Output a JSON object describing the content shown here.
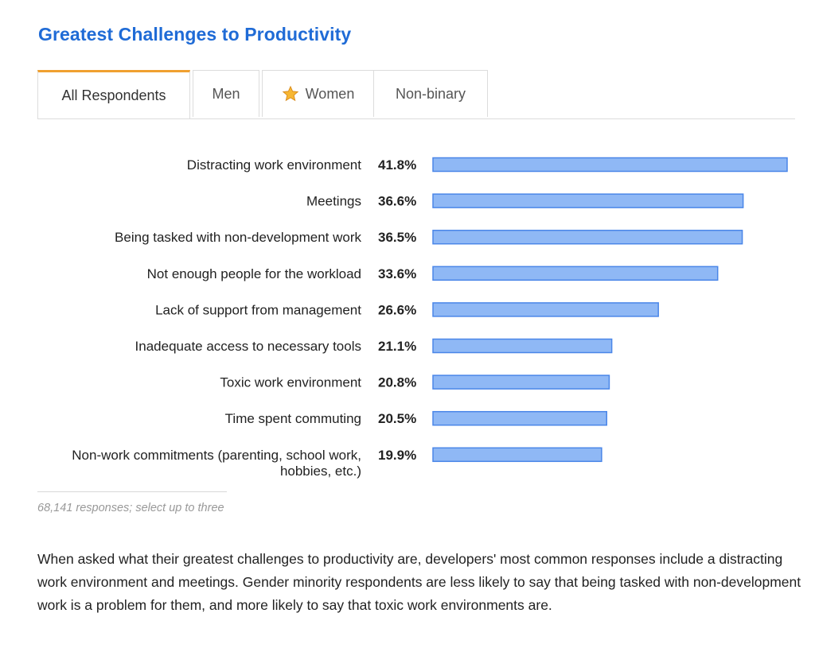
{
  "title": "Greatest Challenges to Productivity",
  "tabs": [
    {
      "label": "All Respondents",
      "active": true
    },
    {
      "label": "Men",
      "active": false
    },
    {
      "label": "Women",
      "active": false,
      "icon": "star-icon"
    },
    {
      "label": "Non-binary",
      "active": false
    }
  ],
  "colors": {
    "title": "#1f6bd6",
    "bar_fill": "#8fb8f5",
    "bar_stroke": "#4a86e8",
    "tab_accent": "#f0a030"
  },
  "chart_data": {
    "type": "bar",
    "orientation": "horizontal",
    "value_format": "percent",
    "categories": [
      [
        "Distracting work environment"
      ],
      [
        "Meetings"
      ],
      [
        "Being tasked with non-development work"
      ],
      [
        "Not enough people for the workload"
      ],
      [
        "Lack of support from management"
      ],
      [
        "Inadequate access to necessary tools"
      ],
      [
        "Toxic work environment"
      ],
      [
        "Time spent commuting"
      ],
      [
        "Non-work commitments (parenting, school work,",
        "hobbies, etc.)"
      ]
    ],
    "values": [
      41.8,
      36.6,
      36.5,
      33.6,
      26.6,
      21.1,
      20.8,
      20.5,
      19.9
    ],
    "value_labels": [
      "41.8%",
      "36.6%",
      "36.5%",
      "33.6%",
      "26.6%",
      "21.1%",
      "20.8%",
      "20.5%",
      "19.9%"
    ],
    "xlim": [
      0,
      41.8
    ],
    "grid": false,
    "legend": "none"
  },
  "footnote": "68,141 responses; select up to three",
  "description": "When asked what their greatest challenges to productivity are, developers' most common responses include a distracting work environment and meetings. Gender minority respondents are less likely to say that being tasked with non-development work is a problem for them, and more likely to say that toxic work environments are."
}
